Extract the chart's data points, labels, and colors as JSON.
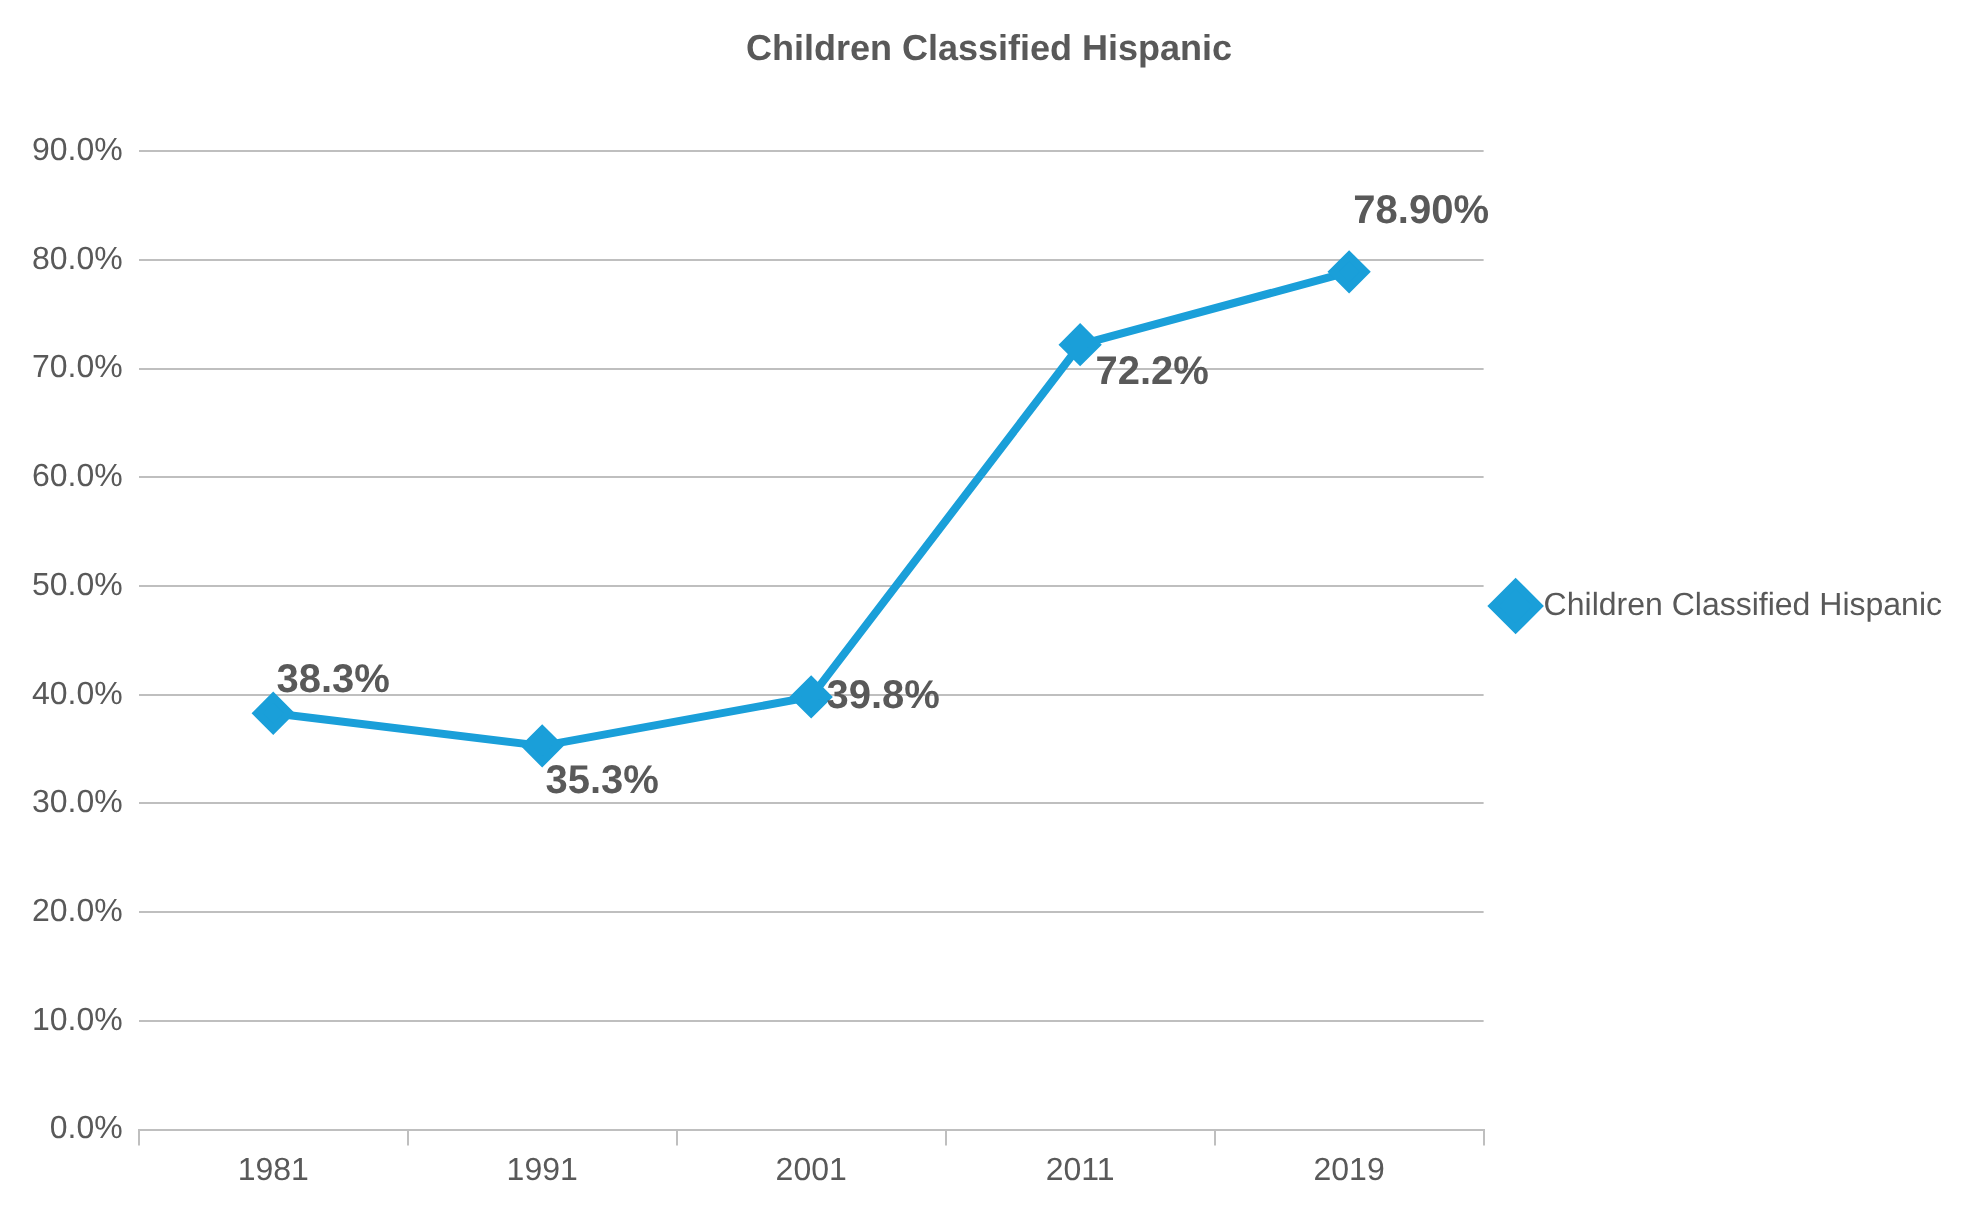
{
  "chart_data": {
    "type": "line",
    "title": "Children Classified Hispanic",
    "categories": [
      "1981",
      "1991",
      "2001",
      "2011",
      "2019"
    ],
    "series": [
      {
        "name": "Children Classified Hispanic",
        "color": "#1a9fd9",
        "values": [
          38.3,
          35.3,
          39.8,
          72.2,
          78.9
        ],
        "value_labels": [
          "38.3%",
          "35.3%",
          "39.8%",
          "72.2%",
          "78.90%"
        ]
      }
    ],
    "ylim": [
      0,
      90
    ],
    "yticks": [
      {
        "value": 0,
        "label": "0.0%"
      },
      {
        "value": 10,
        "label": "10.0%"
      },
      {
        "value": 20,
        "label": "20.0%"
      },
      {
        "value": 30,
        "label": "30.0%"
      },
      {
        "value": 40,
        "label": "40.0%"
      },
      {
        "value": 50,
        "label": "50.0%"
      },
      {
        "value": 60,
        "label": "60.0%"
      },
      {
        "value": 70,
        "label": "70.0%"
      },
      {
        "value": 80,
        "label": "80.0%"
      },
      {
        "value": 90,
        "label": "90.0%"
      }
    ],
    "grid": "y",
    "legend": "right",
    "marker": "diamond",
    "line_style": "solid"
  }
}
